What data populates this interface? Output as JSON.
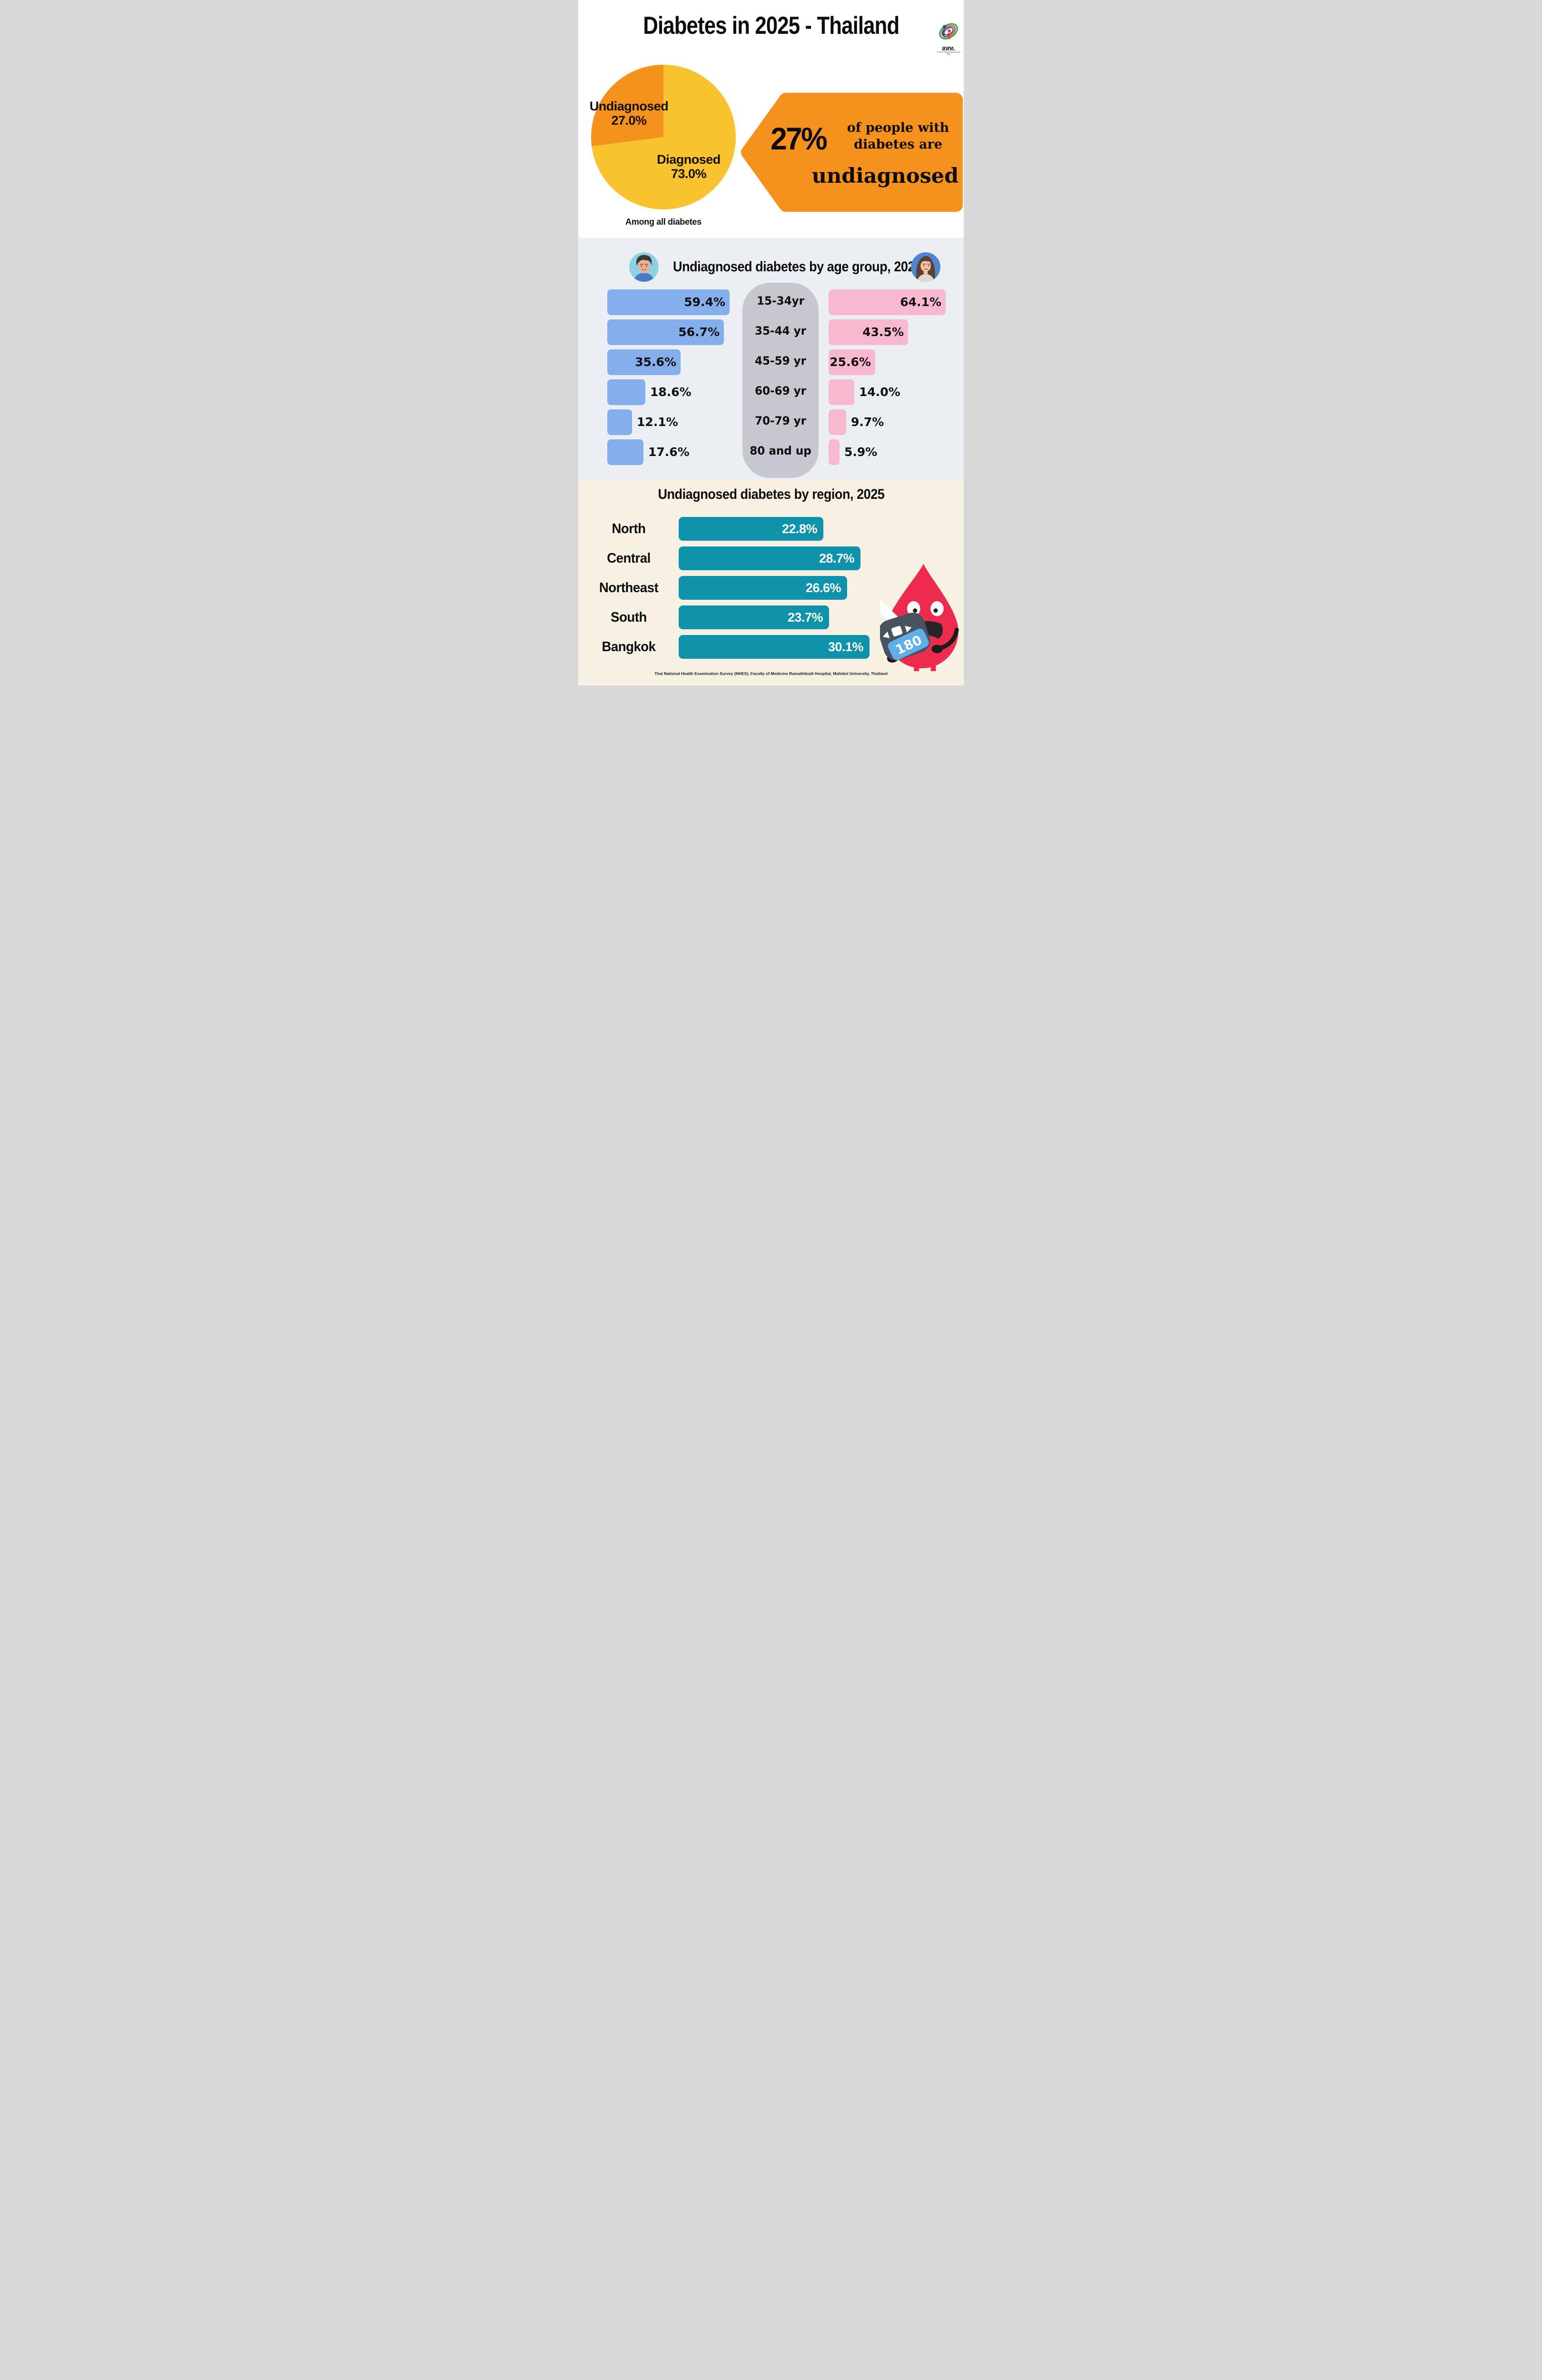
{
  "header": {
    "title": "Diabetes in 2025 - Thailand",
    "logo": {
      "abbr": "สสท.",
      "caption": "การสำรวจสุขภาพประชาชนไทย"
    }
  },
  "pie_chart": {
    "slices": [
      {
        "label": "Undiagnosed",
        "pct_label": "27.0%",
        "value": 27.0,
        "color": "#f5921e"
      },
      {
        "label": "Diagnosed",
        "pct_label": "73.0%",
        "value": 73.0,
        "color": "#f9c32f"
      }
    ],
    "caption": "Among all diabetes"
  },
  "callout": {
    "bg": "#f5921e",
    "stat": "27%",
    "line1": "of people with",
    "line2": "diabetes are",
    "emphasis": "undiagnosed"
  },
  "age_chart": {
    "title": "Undiagnosed diabetes by age group, 2025",
    "groups": [
      "15-34yr",
      "35-44 yr",
      "45-59 yr",
      "60-69 yr",
      "70-79 yr",
      "80 and up"
    ],
    "male": {
      "color": "#85aeec",
      "values": [
        59.4,
        56.7,
        35.6,
        18.6,
        12.1,
        17.6
      ],
      "labels": [
        "59.4%",
        "56.7%",
        "35.6%",
        "18.6%",
        "12.1%",
        "17.6%"
      ]
    },
    "female": {
      "color": "#f8b8cf",
      "values": [
        64.1,
        43.5,
        25.6,
        14.0,
        9.7,
        5.9
      ],
      "labels": [
        "64.1%",
        "43.5%",
        "25.6%",
        "14.0%",
        "9.7%",
        "5.9%"
      ]
    }
  },
  "region_chart": {
    "title": "Undiagnosed diabetes by region, 2025",
    "bar_color": "#0e93ab",
    "rows": [
      {
        "label": "North",
        "value": 22.8,
        "display": "22.8%"
      },
      {
        "label": "Central",
        "value": 28.7,
        "display": "28.7%"
      },
      {
        "label": "Northeast",
        "value": 26.6,
        "display": "26.6%"
      },
      {
        "label": "South",
        "value": 23.7,
        "display": "23.7%"
      },
      {
        "label": "Bangkok",
        "value": 30.1,
        "display": "30.1%"
      }
    ]
  },
  "mascot": {
    "meter_value": "180",
    "drop_color": "#ed2b4f"
  },
  "footer": "Thai National Health Examination Survey (NHES), Faculty of Medicine Ramathibodi Hospital, Mahidol University, Thailand",
  "chart_data": [
    {
      "type": "pie",
      "title": "Among all diabetes",
      "labels": [
        "Undiagnosed",
        "Diagnosed"
      ],
      "values": [
        27.0,
        73.0
      ],
      "unit": "%",
      "colors": [
        "#f5921e",
        "#f9c32f"
      ]
    },
    {
      "type": "bar",
      "title": "Undiagnosed diabetes by age group, 2025",
      "orientation": "horizontal-butterfly",
      "categories": [
        "15-34yr",
        "35-44 yr",
        "45-59 yr",
        "60-69 yr",
        "70-79 yr",
        "80 and up"
      ],
      "series": [
        {
          "name": "Male",
          "values": [
            59.4,
            56.7,
            35.6,
            18.6,
            12.1,
            17.6
          ]
        },
        {
          "name": "Female",
          "values": [
            64.1,
            43.5,
            25.6,
            14.0,
            9.7,
            5.9
          ]
        }
      ],
      "unit": "%"
    },
    {
      "type": "bar",
      "title": "Undiagnosed diabetes by region, 2025",
      "orientation": "horizontal",
      "categories": [
        "North",
        "Central",
        "Northeast",
        "South",
        "Bangkok"
      ],
      "values": [
        22.8,
        28.7,
        26.6,
        23.7,
        30.1
      ],
      "unit": "%"
    }
  ]
}
